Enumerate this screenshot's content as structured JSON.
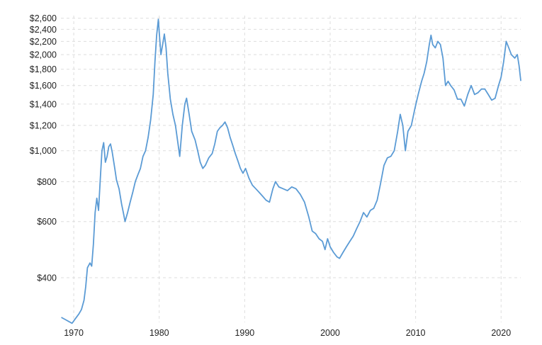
{
  "colors": {
    "line": "#5b9bd5",
    "grid": "#dddddd",
    "text": "#222222"
  },
  "chart_data": {
    "type": "line",
    "title": "",
    "xlabel": "",
    "ylabel": "",
    "y_scale": "log",
    "ylim": [
      290,
      2650
    ],
    "xlim": [
      1968.5,
      2022.3
    ],
    "grid": {
      "horizontal": true,
      "vertical": true,
      "style": "dashed"
    },
    "legend": "none",
    "y_ticks": [
      {
        "value": 400,
        "label": "$400"
      },
      {
        "value": 600,
        "label": "$600"
      },
      {
        "value": 800,
        "label": "$800"
      },
      {
        "value": 1000,
        "label": "$1,000"
      },
      {
        "value": 1200,
        "label": "$1,200"
      },
      {
        "value": 1400,
        "label": "$1,400"
      },
      {
        "value": 1600,
        "label": "$1,600"
      },
      {
        "value": 1800,
        "label": "$1,800"
      },
      {
        "value": 2000,
        "label": "$2,000"
      },
      {
        "value": 2200,
        "label": "$2,200"
      },
      {
        "value": 2400,
        "label": "$2,400"
      },
      {
        "value": 2600,
        "label": "$2,600"
      }
    ],
    "x_ticks": [
      {
        "value": 1970,
        "label": "1970"
      },
      {
        "value": 1980,
        "label": "1980"
      },
      {
        "value": 1990,
        "label": "1990"
      },
      {
        "value": 2000,
        "label": "2000"
      },
      {
        "value": 2010,
        "label": "2010"
      },
      {
        "value": 2020,
        "label": "2020"
      }
    ],
    "series": [
      {
        "points": [
          [
            1968.6,
            300
          ],
          [
            1969.0,
            296
          ],
          [
            1969.4,
            292
          ],
          [
            1969.8,
            288
          ],
          [
            1970.2,
            298
          ],
          [
            1970.6,
            308
          ],
          [
            1970.9,
            318
          ],
          [
            1971.2,
            340
          ],
          [
            1971.4,
            375
          ],
          [
            1971.6,
            430
          ],
          [
            1971.9,
            445
          ],
          [
            1972.1,
            435
          ],
          [
            1972.3,
            510
          ],
          [
            1972.5,
            640
          ],
          [
            1972.7,
            710
          ],
          [
            1972.9,
            650
          ],
          [
            1973.1,
            810
          ],
          [
            1973.3,
            1000
          ],
          [
            1973.5,
            1060
          ],
          [
            1973.7,
            920
          ],
          [
            1973.9,
            960
          ],
          [
            1974.1,
            1030
          ],
          [
            1974.3,
            1050
          ],
          [
            1974.5,
            990
          ],
          [
            1974.8,
            880
          ],
          [
            1975.0,
            810
          ],
          [
            1975.3,
            760
          ],
          [
            1975.6,
            680
          ],
          [
            1975.8,
            640
          ],
          [
            1976.0,
            600
          ],
          [
            1976.3,
            640
          ],
          [
            1976.6,
            690
          ],
          [
            1976.9,
            740
          ],
          [
            1977.2,
            800
          ],
          [
            1977.5,
            840
          ],
          [
            1977.8,
            880
          ],
          [
            1978.1,
            960
          ],
          [
            1978.4,
            1000
          ],
          [
            1978.7,
            1100
          ],
          [
            1979.0,
            1250
          ],
          [
            1979.3,
            1500
          ],
          [
            1979.5,
            1900
          ],
          [
            1979.7,
            2300
          ],
          [
            1979.9,
            2580
          ],
          [
            1980.0,
            2350
          ],
          [
            1980.2,
            2000
          ],
          [
            1980.4,
            2150
          ],
          [
            1980.6,
            2320
          ],
          [
            1980.8,
            2100
          ],
          [
            1981.0,
            1750
          ],
          [
            1981.3,
            1450
          ],
          [
            1981.6,
            1300
          ],
          [
            1981.9,
            1200
          ],
          [
            1982.2,
            1050
          ],
          [
            1982.4,
            960
          ],
          [
            1982.7,
            1200
          ],
          [
            1983.0,
            1400
          ],
          [
            1983.2,
            1460
          ],
          [
            1983.5,
            1300
          ],
          [
            1983.8,
            1150
          ],
          [
            1984.2,
            1080
          ],
          [
            1984.5,
            1000
          ],
          [
            1984.8,
            920
          ],
          [
            1985.1,
            880
          ],
          [
            1985.4,
            900
          ],
          [
            1985.8,
            950
          ],
          [
            1986.2,
            980
          ],
          [
            1986.5,
            1050
          ],
          [
            1986.8,
            1150
          ],
          [
            1987.1,
            1180
          ],
          [
            1987.4,
            1200
          ],
          [
            1987.7,
            1230
          ],
          [
            1988.0,
            1180
          ],
          [
            1988.3,
            1100
          ],
          [
            1988.6,
            1040
          ],
          [
            1988.9,
            980
          ],
          [
            1989.2,
            930
          ],
          [
            1989.5,
            880
          ],
          [
            1989.8,
            850
          ],
          [
            1990.1,
            880
          ],
          [
            1990.5,
            820
          ],
          [
            1990.9,
            780
          ],
          [
            1991.3,
            760
          ],
          [
            1991.7,
            740
          ],
          [
            1992.1,
            720
          ],
          [
            1992.5,
            700
          ],
          [
            1992.9,
            690
          ],
          [
            1993.3,
            760
          ],
          [
            1993.6,
            800
          ],
          [
            1994.0,
            770
          ],
          [
            1994.5,
            760
          ],
          [
            1995.0,
            750
          ],
          [
            1995.5,
            770
          ],
          [
            1996.0,
            760
          ],
          [
            1996.5,
            730
          ],
          [
            1997.0,
            690
          ],
          [
            1997.5,
            620
          ],
          [
            1997.9,
            560
          ],
          [
            1998.3,
            550
          ],
          [
            1998.7,
            530
          ],
          [
            1999.1,
            520
          ],
          [
            1999.4,
            490
          ],
          [
            1999.7,
            530
          ],
          [
            2000.0,
            500
          ],
          [
            2000.4,
            480
          ],
          [
            2000.8,
            465
          ],
          [
            2001.1,
            460
          ],
          [
            2001.5,
            480
          ],
          [
            2001.9,
            500
          ],
          [
            2002.3,
            520
          ],
          [
            2002.7,
            540
          ],
          [
            2003.1,
            570
          ],
          [
            2003.5,
            600
          ],
          [
            2003.9,
            640
          ],
          [
            2004.3,
            620
          ],
          [
            2004.7,
            650
          ],
          [
            2005.1,
            660
          ],
          [
            2005.5,
            700
          ],
          [
            2005.9,
            790
          ],
          [
            2006.3,
            900
          ],
          [
            2006.7,
            950
          ],
          [
            2007.1,
            960
          ],
          [
            2007.5,
            1000
          ],
          [
            2007.9,
            1150
          ],
          [
            2008.2,
            1300
          ],
          [
            2008.5,
            1200
          ],
          [
            2008.8,
            1000
          ],
          [
            2009.1,
            1150
          ],
          [
            2009.5,
            1200
          ],
          [
            2009.9,
            1350
          ],
          [
            2010.3,
            1500
          ],
          [
            2010.7,
            1650
          ],
          [
            2011.0,
            1750
          ],
          [
            2011.3,
            1900
          ],
          [
            2011.6,
            2150
          ],
          [
            2011.8,
            2300
          ],
          [
            2012.0,
            2150
          ],
          [
            2012.3,
            2100
          ],
          [
            2012.6,
            2200
          ],
          [
            2012.9,
            2150
          ],
          [
            2013.2,
            1950
          ],
          [
            2013.5,
            1600
          ],
          [
            2013.8,
            1650
          ],
          [
            2014.1,
            1600
          ],
          [
            2014.5,
            1550
          ],
          [
            2014.9,
            1450
          ],
          [
            2015.3,
            1450
          ],
          [
            2015.7,
            1380
          ],
          [
            2016.1,
            1500
          ],
          [
            2016.5,
            1600
          ],
          [
            2016.9,
            1500
          ],
          [
            2017.3,
            1520
          ],
          [
            2017.7,
            1560
          ],
          [
            2018.1,
            1560
          ],
          [
            2018.5,
            1500
          ],
          [
            2018.9,
            1440
          ],
          [
            2019.3,
            1460
          ],
          [
            2019.7,
            1600
          ],
          [
            2020.0,
            1700
          ],
          [
            2020.3,
            1900
          ],
          [
            2020.6,
            2200
          ],
          [
            2020.9,
            2100
          ],
          [
            2021.2,
            2000
          ],
          [
            2021.6,
            1950
          ],
          [
            2021.9,
            2000
          ],
          [
            2022.1,
            1850
          ],
          [
            2022.3,
            1660
          ]
        ]
      }
    ]
  }
}
